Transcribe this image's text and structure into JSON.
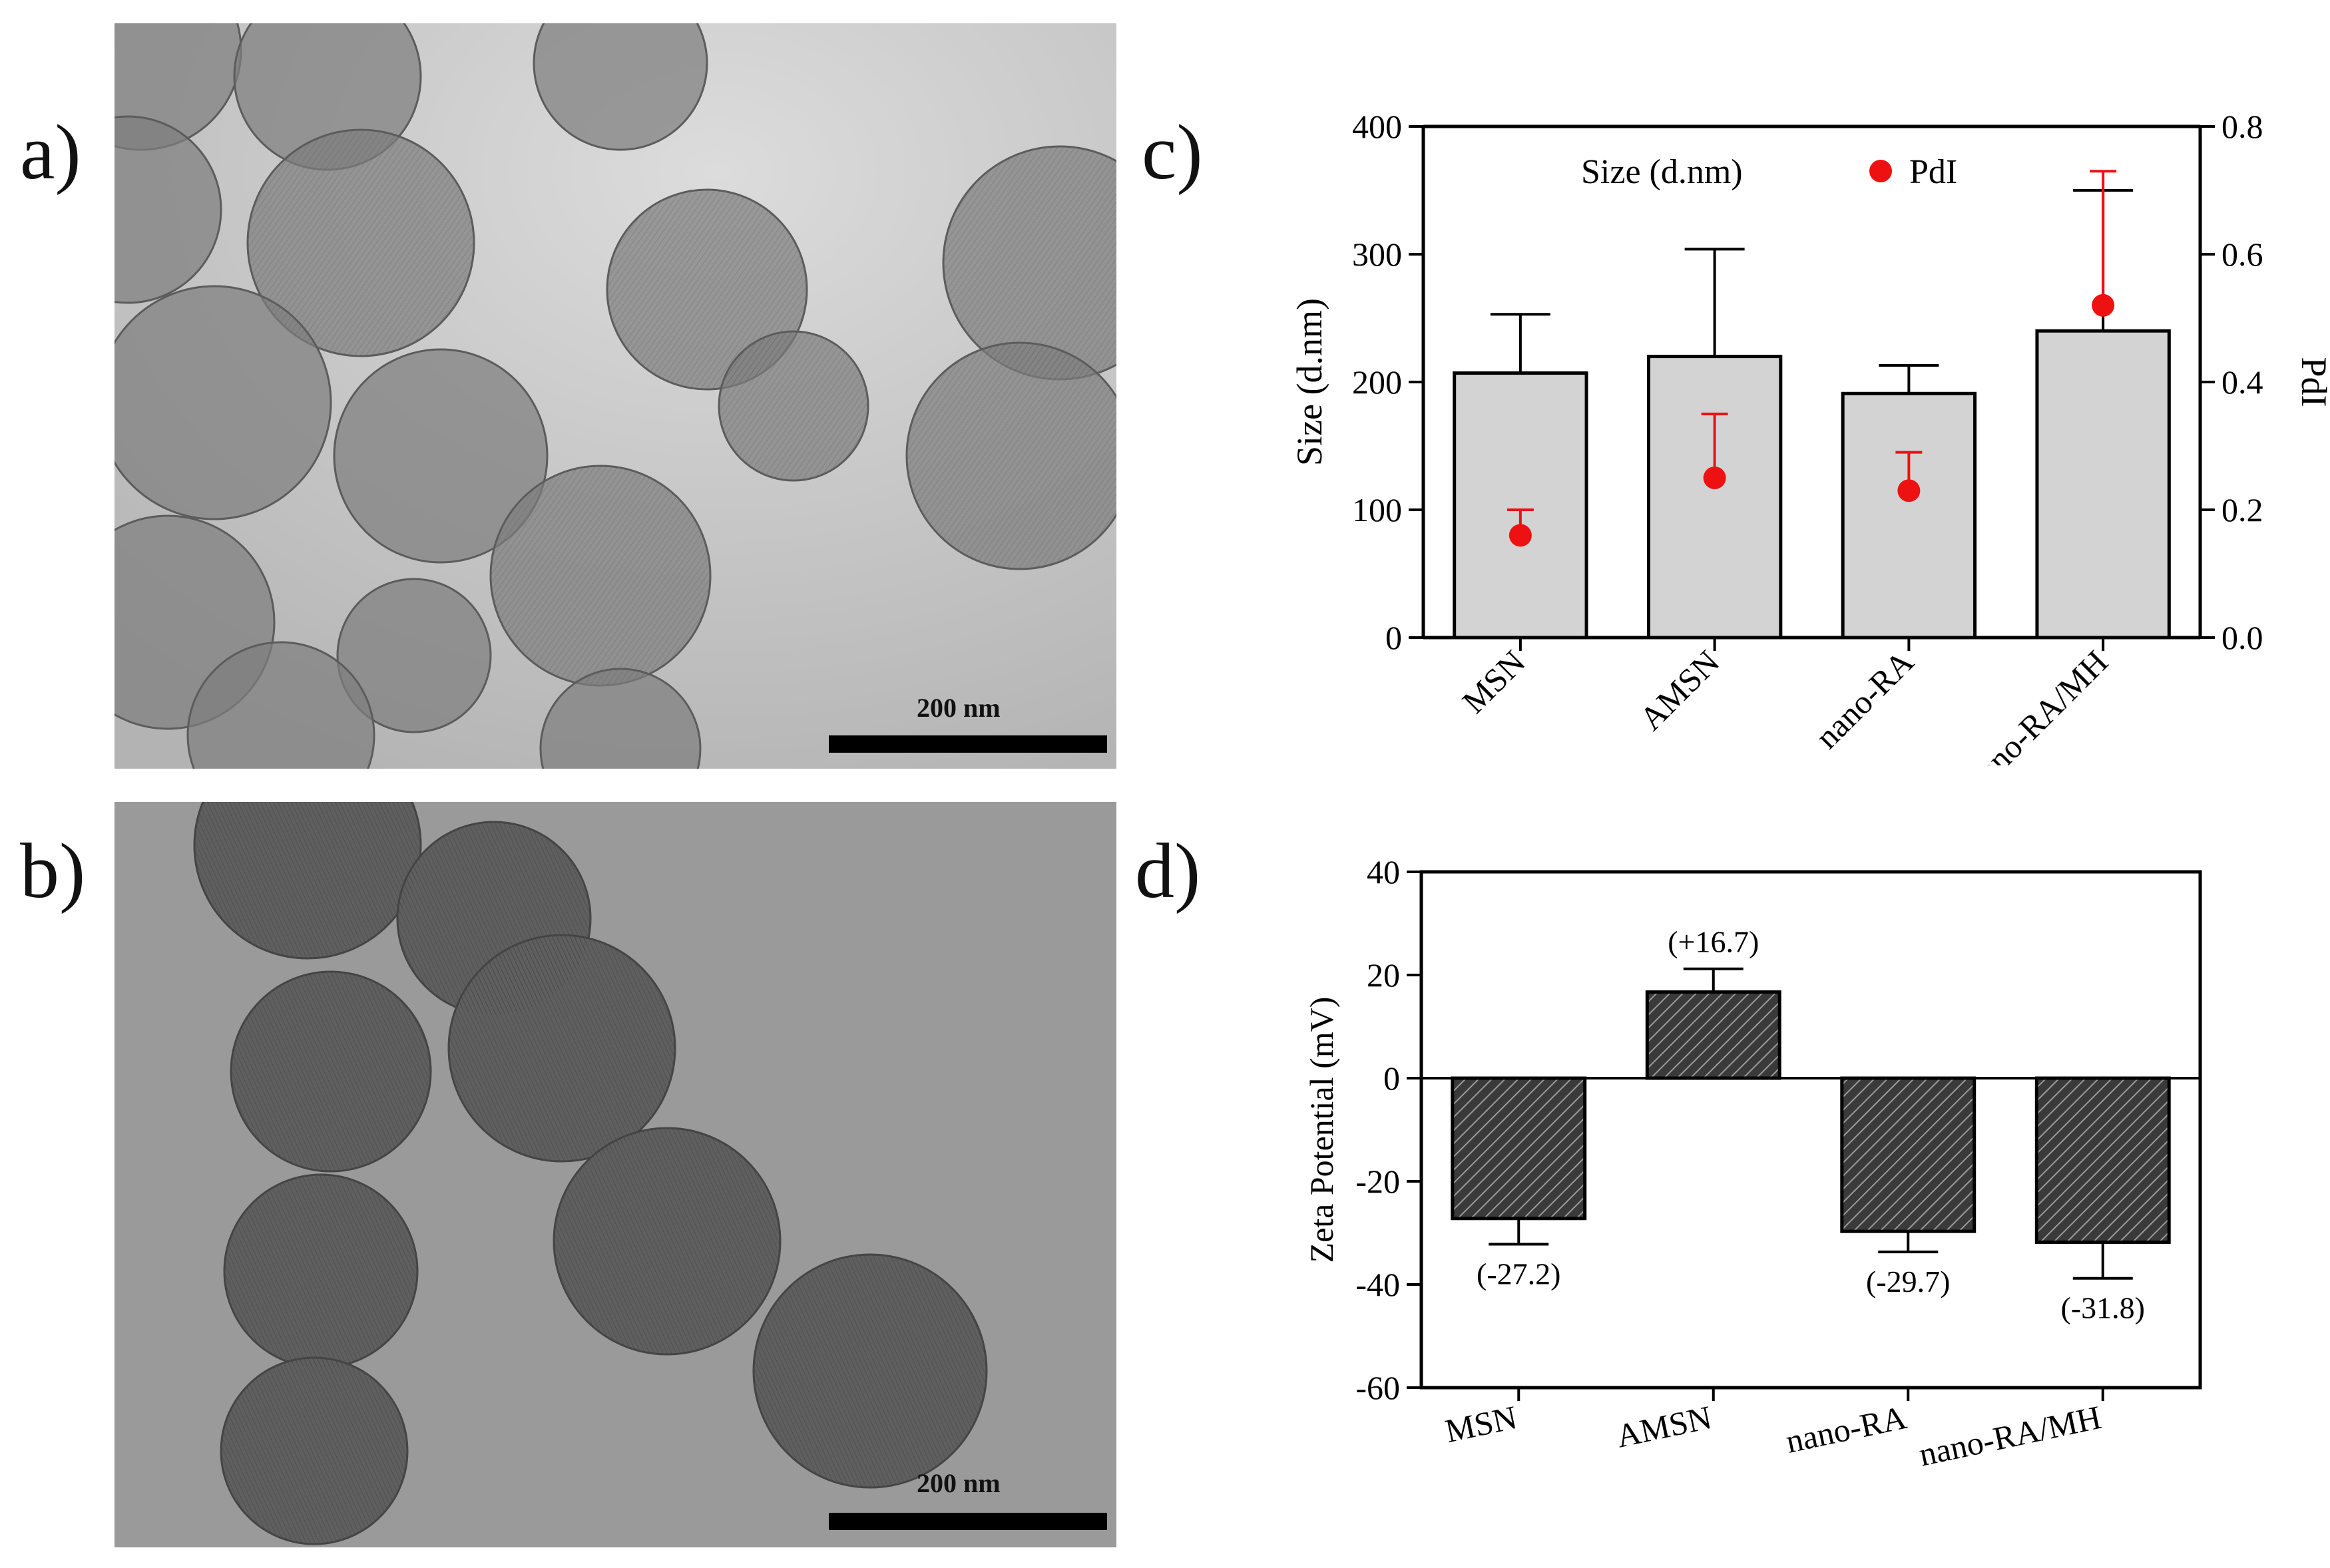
{
  "panels": {
    "a": {
      "label": "a)",
      "scale_text": "200 nm"
    },
    "b": {
      "label": "b)",
      "scale_text": "200 nm"
    },
    "c": {
      "label": "c)"
    },
    "d": {
      "label": "d)"
    }
  },
  "chart_data": [
    {
      "panel": "c",
      "type": "bar",
      "categories": [
        "MSN",
        "AMSN",
        "nano-RA",
        "nano-RA/MH"
      ],
      "series": [
        {
          "name": "Size (d.nm)",
          "kind": "bar",
          "axis": "left",
          "values": [
            207,
            220,
            191,
            240
          ],
          "error": [
            46,
            84,
            22,
            110
          ]
        },
        {
          "name": "PdI",
          "kind": "scatter",
          "axis": "right",
          "values": [
            0.16,
            0.25,
            0.23,
            0.52
          ],
          "error": [
            0.04,
            0.1,
            0.06,
            0.21
          ]
        }
      ],
      "ylabel": "Size (d.nm)",
      "y2label": "PdI",
      "ylim": [
        0,
        400
      ],
      "y2lim": [
        0,
        0.8
      ],
      "yticks": [
        0,
        100,
        200,
        300,
        400
      ],
      "y2ticks": [
        "0.0",
        "0.2",
        "0.4",
        "0.6",
        "0.8"
      ],
      "legend_position": "top",
      "colors": {
        "bar": "#d3d3d3",
        "pdi": "#ee1111"
      }
    },
    {
      "panel": "d",
      "type": "bar",
      "categories": [
        "MSN",
        "AMSN",
        "nano-RA",
        "nano-RA/MH"
      ],
      "values": [
        -27.2,
        16.7,
        -29.7,
        -31.8
      ],
      "error": [
        5,
        4.5,
        4,
        7
      ],
      "annotations": [
        "(-27.2)",
        "(+16.7)",
        "(-29.7)",
        "(-31.8)"
      ],
      "ylabel": "Zeta Potential (mV)",
      "ylim": [
        -60,
        40
      ],
      "yticks": [
        -60,
        -40,
        -20,
        0,
        20,
        40
      ],
      "colors": {
        "bar": "#3a3a3a",
        "hatch": "#9a9a9a"
      }
    }
  ]
}
